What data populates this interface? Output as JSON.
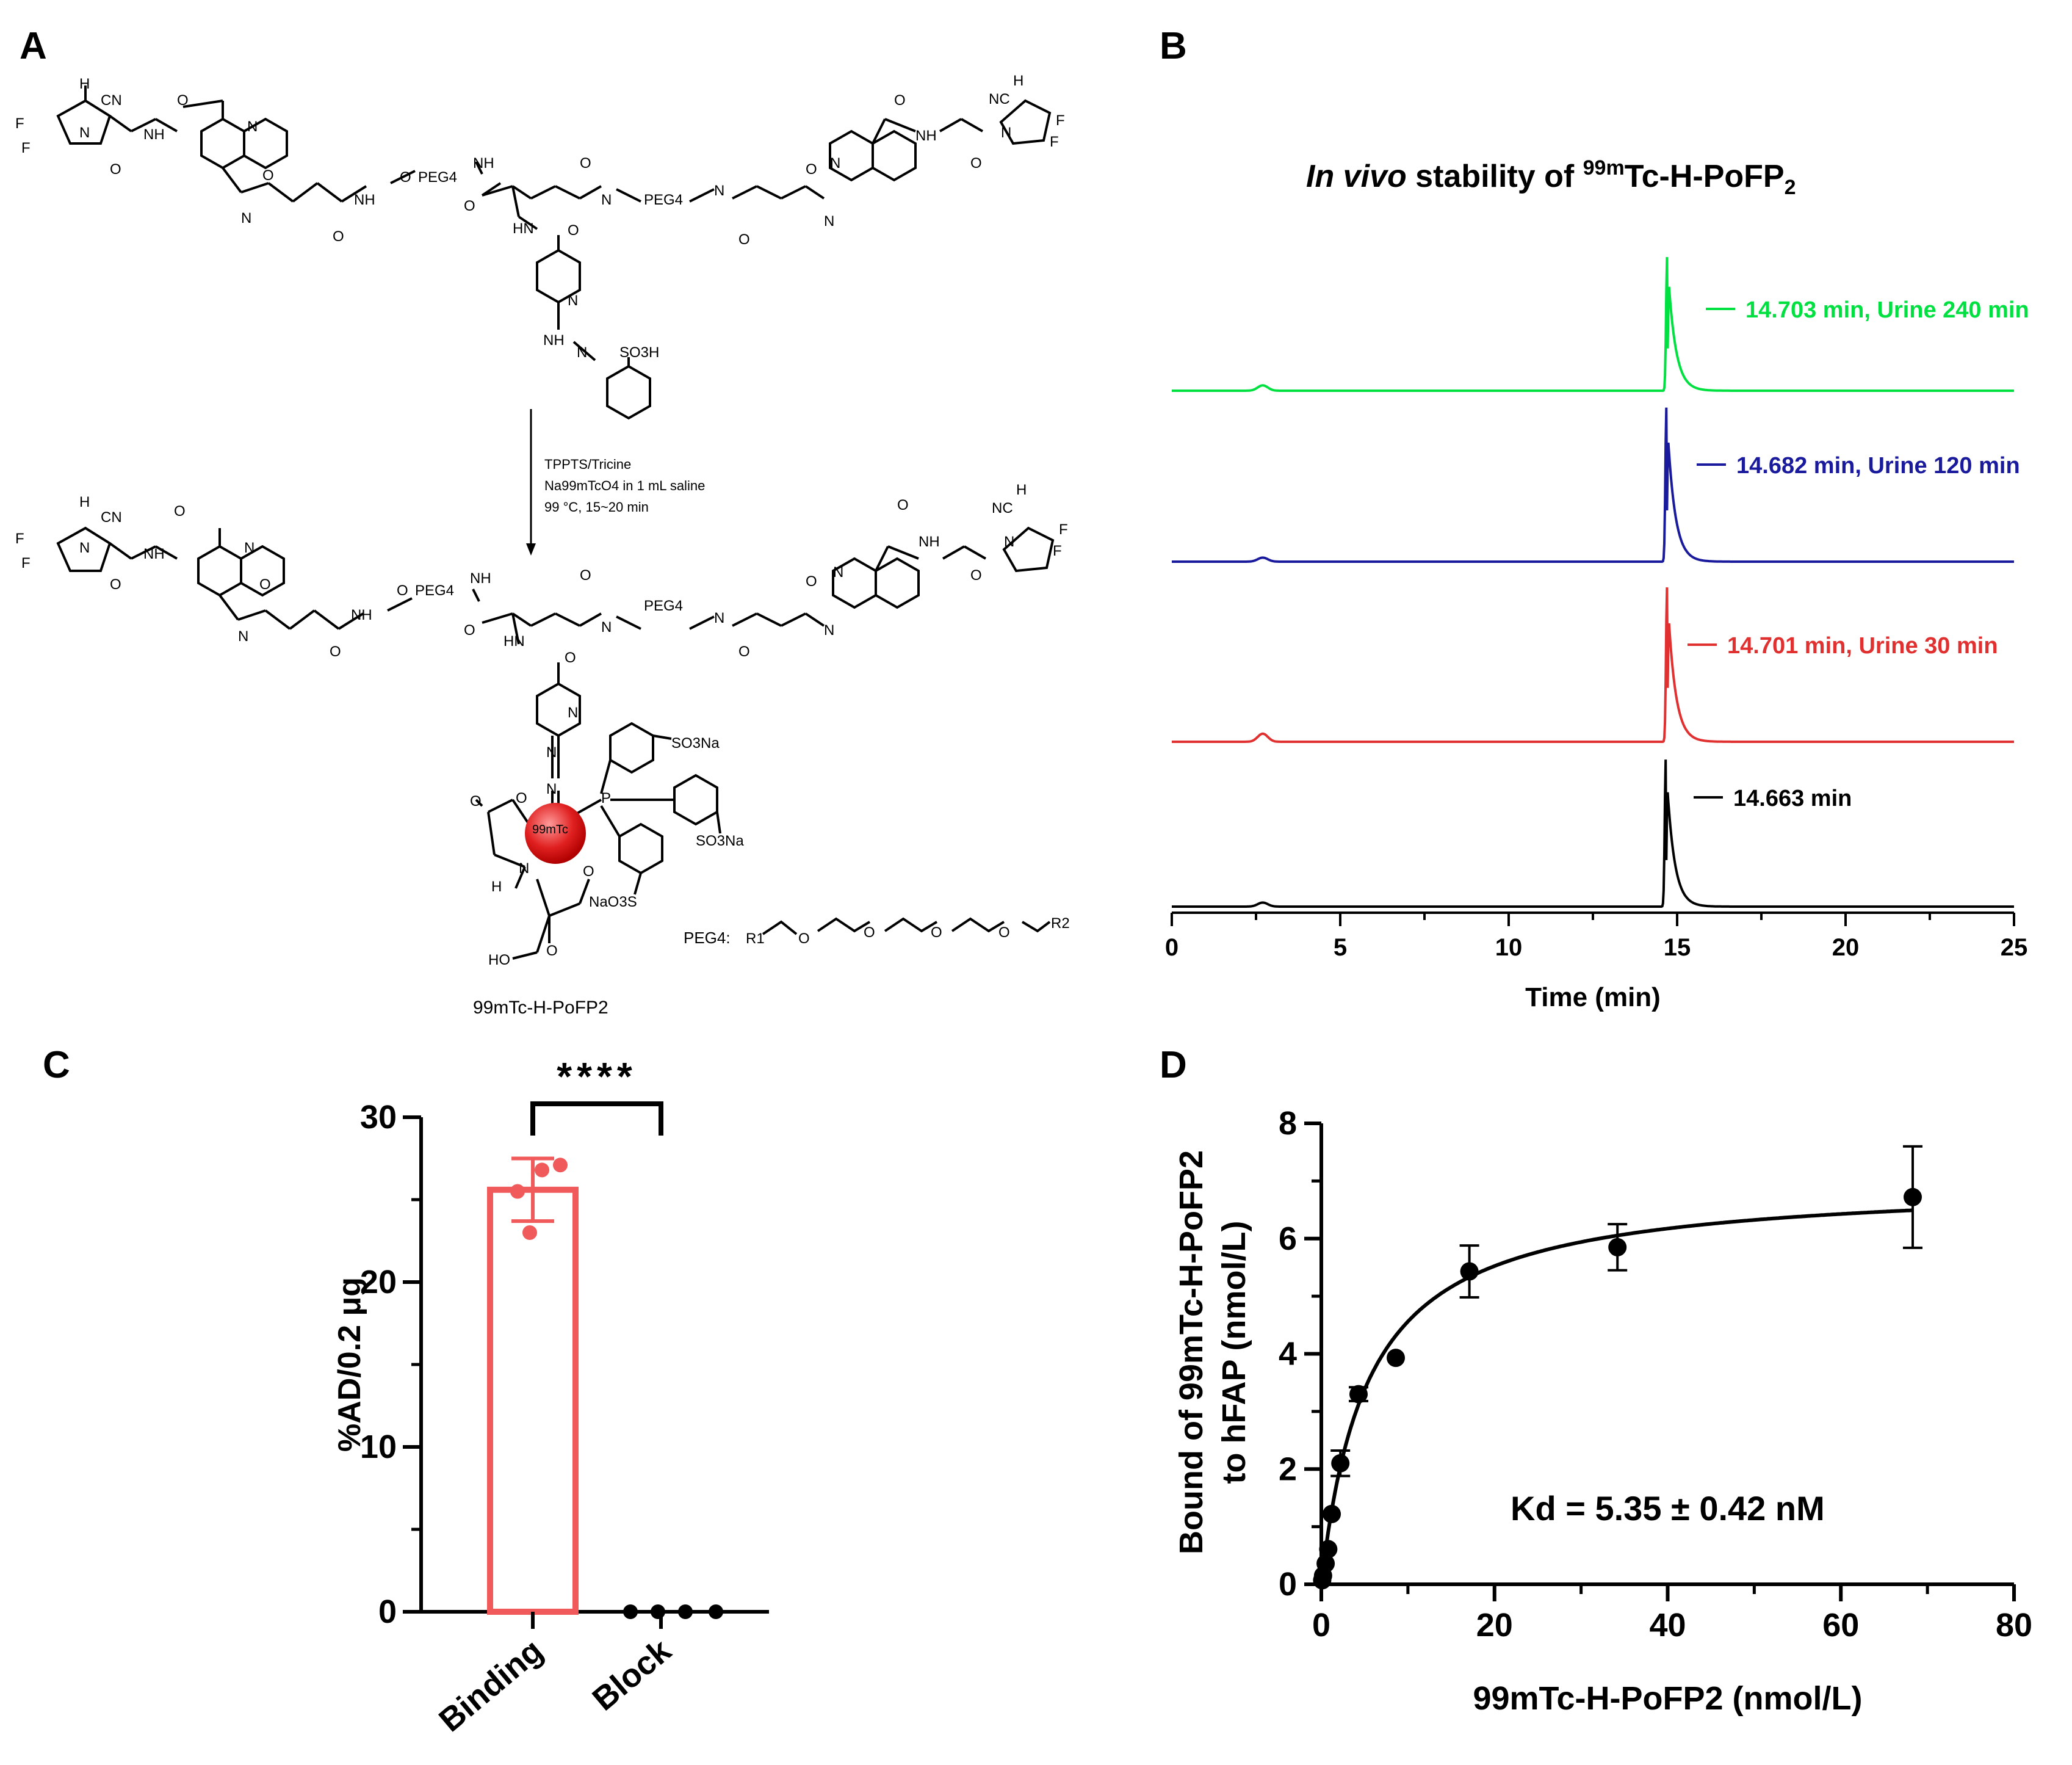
{
  "panels": {
    "A": {
      "label": "A",
      "peg_unit": "PEG4",
      "reaction_conditions": [
        "TPPTS/Tricine",
        "Na99mTcO4 in 1 mL saline",
        "99 °C, 15~20 min"
      ],
      "tracer_name": "99mTc-H-PoFP2",
      "peg_definition_label": "PEG4:",
      "atom_labels": {
        "cn": "CN",
        "nc": "NC",
        "f": "F",
        "h": "H",
        "o": "O",
        "n": "N",
        "nh": "NH",
        "hn": "HN",
        "p": "P",
        "tc": "99mTc",
        "so3h": "SO3H",
        "so3na": "SO3Na",
        "nao3s": "NaO3S",
        "ho": "HO",
        "r1": "R1",
        "r2": "R2"
      }
    },
    "B": {
      "label": "B",
      "title_italic": "In vivo",
      "title_rest": " stability of ",
      "title_sup": "99m",
      "title_tail": "Tc-H-PoFP",
      "title_sub": "2",
      "xlabel": "Time (min)"
    },
    "C": {
      "label": "C",
      "significance": "****"
    },
    "D": {
      "label": "D",
      "ylabel_line1": "Bound of 99mTc-H-PoFP2",
      "ylabel_line2": "to hFAP (nmol/L)",
      "xlabel": "99mTc-H-PoFP2 (nmol/L)",
      "annotation": "Kd = 5.35 ± 0.42 nM"
    }
  },
  "chart_data": [
    {
      "panel": "B",
      "type": "line",
      "title": "In vivo stability of 99mTc-H-PoFP2",
      "xlabel": "Time (min)",
      "xlim": [
        0,
        25
      ],
      "xticks": [
        0,
        5,
        10,
        15,
        20,
        25
      ],
      "series": [
        {
          "name": "14.703 min, Urine 240 min",
          "color": "#00e040",
          "peak_time": 14.703,
          "peak_height": 1.0,
          "minor_peak_time": 2.7,
          "minor_peak_height": 0.04
        },
        {
          "name": "14.682 min, Urine 120 min",
          "color": "#1a1a9c",
          "peak_time": 14.682,
          "peak_height": 1.15,
          "minor_peak_time": 2.7,
          "minor_peak_height": 0.03
        },
        {
          "name": "14.701 min, Urine 30 min",
          "color": "#e03030",
          "peak_time": 14.701,
          "peak_height": 1.15,
          "minor_peak_time": 2.7,
          "minor_peak_height": 0.06
        },
        {
          "name": "14.663 min",
          "color": "#000000",
          "peak_time": 14.663,
          "peak_height": 1.1,
          "minor_peak_time": 2.7,
          "minor_peak_height": 0.03
        }
      ]
    },
    {
      "panel": "C",
      "type": "bar",
      "ylabel": "%AD/0.2 μg",
      "ylim": [
        0,
        30
      ],
      "yticks": [
        0,
        10,
        20,
        30
      ],
      "categories": [
        "Binding",
        "Block"
      ],
      "values": [
        25.6,
        0
      ],
      "errors": [
        1.9,
        0
      ],
      "points": [
        [
          23.0,
          25.5,
          26.8,
          27.1
        ],
        [
          0,
          0,
          0,
          0
        ]
      ],
      "bar_color": "#f05a5a",
      "significance": "****"
    },
    {
      "panel": "D",
      "type": "scatter",
      "xlabel": "99mTc-H-PoFP2 (nmol/L)",
      "ylabel": "Bound of 99mTc-H-PoFP2 to hFAP (nmol/L)",
      "xlim": [
        0,
        80
      ],
      "ylim": [
        0,
        8
      ],
      "xticks": [
        0,
        20,
        40,
        60,
        80
      ],
      "yticks": [
        0,
        2,
        4,
        6,
        8
      ],
      "x": [
        0.1,
        0.2,
        0.5,
        0.8,
        1.2,
        2.2,
        4.3,
        8.6,
        17.1,
        34.2,
        68.3
      ],
      "y": [
        0.07,
        0.15,
        0.36,
        0.61,
        1.22,
        2.1,
        3.3,
        3.93,
        5.43,
        5.85,
        6.72
      ],
      "yerr": [
        0.02,
        0.02,
        0.04,
        0.05,
        0.08,
        0.22,
        0.12,
        0.05,
        0.45,
        0.4,
        0.88
      ],
      "fit": {
        "model": "one-site binding",
        "Bmax": 7.0,
        "Kd": 5.35
      },
      "annotation": "Kd = 5.35 ± 0.42 nM"
    }
  ]
}
